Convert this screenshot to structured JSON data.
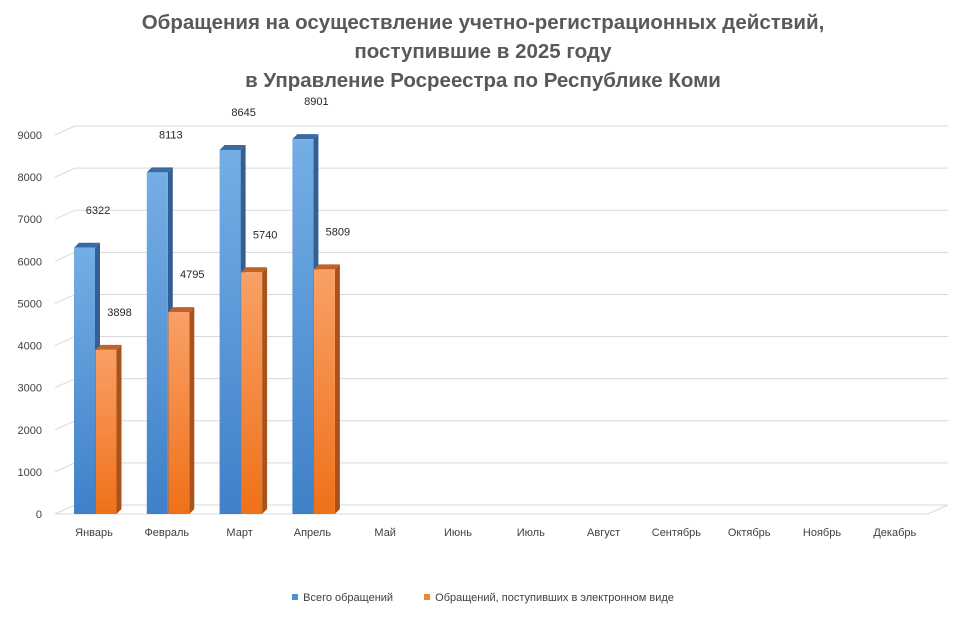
{
  "title": {
    "line1": "Обращения на осуществление учетно-регистрационных действий,",
    "line2": "поступившие в 2025 году",
    "line3": "в Управление Росреестра по Республике Коми"
  },
  "colors": {
    "series1": "#4f8fd6",
    "series2": "#f5832f",
    "grid": "#d9d9d9",
    "text": "#404040"
  },
  "chart_data": {
    "type": "bar",
    "title": "Обращения на осуществление учетно-регистрационных действий, поступившие в 2025 году в Управление Росреестра по Республике Коми",
    "categories": [
      "Январь",
      "Февраль",
      "Март",
      "Апрель",
      "Май",
      "Июнь",
      "Июль",
      "Август",
      "Сентябрь",
      "Октябрь",
      "Ноябрь",
      "Декабрь"
    ],
    "series": [
      {
        "name": "Всего обращений",
        "values": [
          6322,
          8113,
          8645,
          8901,
          null,
          null,
          null,
          null,
          null,
          null,
          null,
          null
        ]
      },
      {
        "name": "Обращений, поступивших в электронном виде",
        "values": [
          3898,
          4795,
          5740,
          5809,
          null,
          null,
          null,
          null,
          null,
          null,
          null,
          null
        ]
      }
    ],
    "ylim": [
      0,
      9000
    ],
    "yticks": [
      0,
      1000,
      2000,
      3000,
      4000,
      5000,
      6000,
      7000,
      8000,
      9000
    ],
    "grid": true,
    "legend": "bottom",
    "style": "3d-columns"
  }
}
